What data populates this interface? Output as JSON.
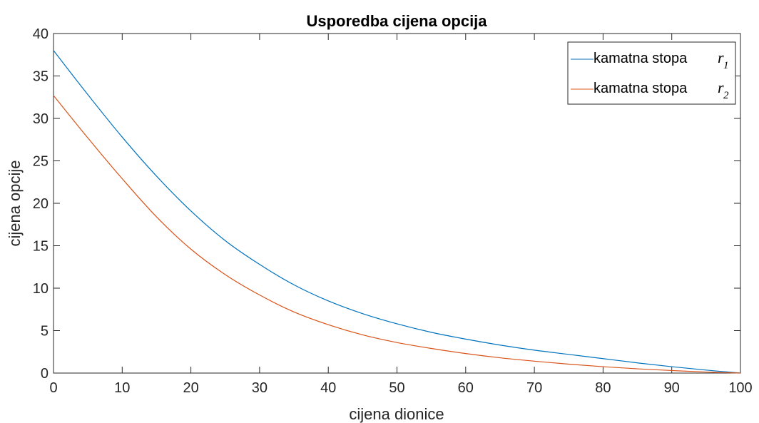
{
  "chart_data": {
    "type": "line",
    "title": "Usporedba cijena opcija",
    "xlabel": "cijena dionice",
    "ylabel": "cijena opcije",
    "xlim": [
      0,
      100
    ],
    "ylim": [
      0,
      40
    ],
    "xticks": [
      0,
      10,
      20,
      30,
      40,
      50,
      60,
      70,
      80,
      90,
      100
    ],
    "yticks": [
      0,
      5,
      10,
      15,
      20,
      25,
      30,
      35,
      40
    ],
    "grid": false,
    "legend_position": "top-right",
    "series": [
      {
        "name": "kamatna stopa",
        "name_symbol": "r",
        "name_subscript": "1",
        "color": "#0072BD",
        "x": [
          0,
          5,
          10,
          15,
          20,
          25,
          30,
          35,
          40,
          45,
          50,
          55,
          60,
          65,
          70,
          75,
          80,
          85,
          90,
          95,
          100
        ],
        "y": [
          38.0,
          32.8,
          27.8,
          23.2,
          19.1,
          15.6,
          12.8,
          10.4,
          8.5,
          7.0,
          5.8,
          4.8,
          4.0,
          3.3,
          2.7,
          2.2,
          1.7,
          1.2,
          0.75,
          0.35,
          0.0
        ]
      },
      {
        "name": "kamatna stopa",
        "name_symbol": "r",
        "name_subscript": "2",
        "color": "#D95319",
        "x": [
          0,
          5,
          10,
          15,
          20,
          25,
          30,
          35,
          40,
          45,
          50,
          55,
          60,
          65,
          70,
          75,
          80,
          85,
          90,
          95,
          100
        ],
        "y": [
          32.7,
          27.7,
          22.9,
          18.4,
          14.6,
          11.6,
          9.2,
          7.2,
          5.7,
          4.5,
          3.6,
          2.9,
          2.3,
          1.8,
          1.4,
          1.05,
          0.75,
          0.5,
          0.3,
          0.12,
          0.0
        ]
      }
    ]
  }
}
